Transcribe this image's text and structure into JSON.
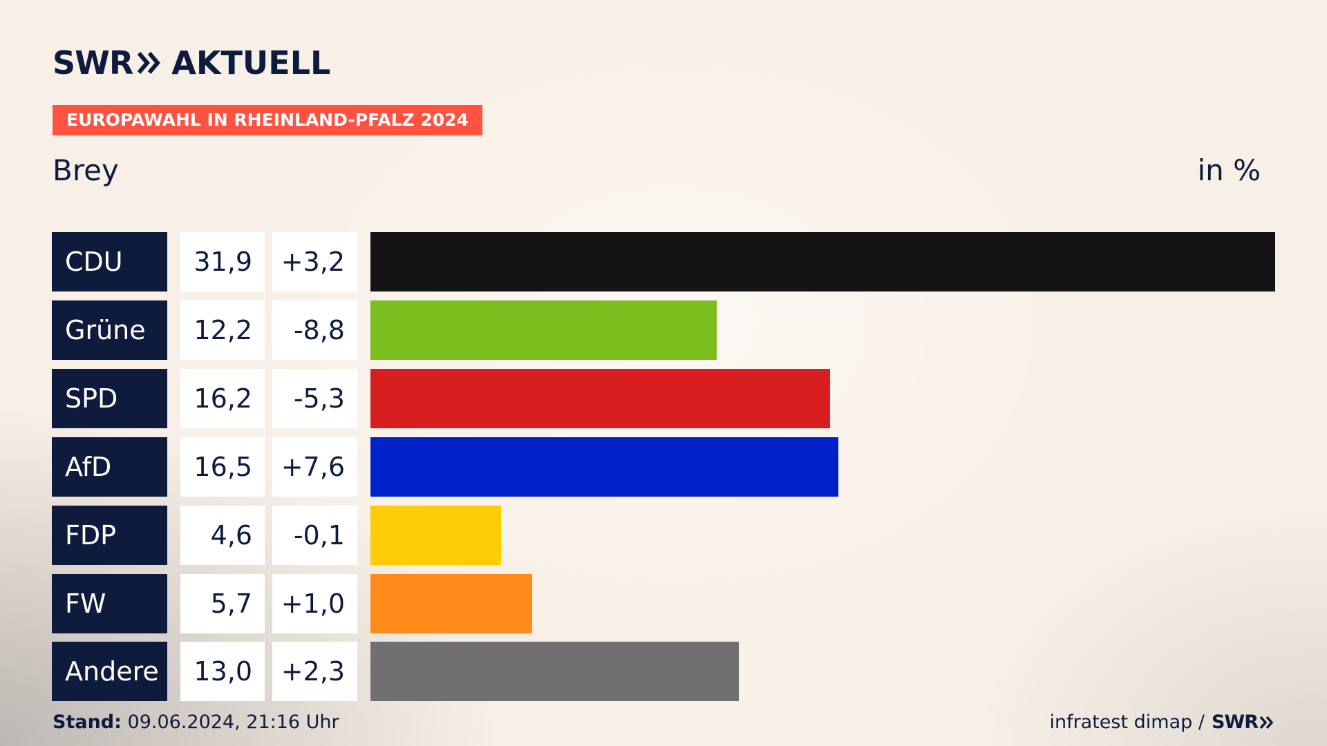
{
  "header": {
    "logo_prefix": "SWR",
    "logo_suffix": "AKTUELL",
    "badge": "EUROPAWAHL IN RHEINLAND-PFALZ 2024",
    "location": "Brey",
    "unit": "in %"
  },
  "footer": {
    "stand_label": "Stand:",
    "stand_value": "09.06.2024, 21:16 Uhr",
    "source": "infratest dimap /",
    "source_logo": "SWR"
  },
  "chart_data": {
    "type": "bar",
    "orientation": "horizontal",
    "unit": "in %",
    "categories": [
      "CDU",
      "Grüne",
      "SPD",
      "AfD",
      "FDP",
      "FW",
      "Andere"
    ],
    "values": [
      31.9,
      12.2,
      16.2,
      16.5,
      4.6,
      5.7,
      13.0
    ],
    "value_labels": [
      "31,9",
      "12,2",
      "16,2",
      "16,5",
      "4,6",
      "5,7",
      "13,0"
    ],
    "diffs": [
      3.2,
      -8.8,
      -5.3,
      7.6,
      -0.1,
      1.0,
      2.3
    ],
    "diff_labels": [
      "+3,2",
      "-8,8",
      "-5,3",
      "+7,6",
      "-0,1",
      "+1,0",
      "+2,3"
    ],
    "colors": [
      "#141414",
      "#7abf1e",
      "#d71f20",
      "#0020c8",
      "#ffcc08",
      "#ff8c1a",
      "#707070"
    ],
    "xlim": [
      0,
      31.9
    ],
    "grid": false,
    "legend": "none"
  }
}
